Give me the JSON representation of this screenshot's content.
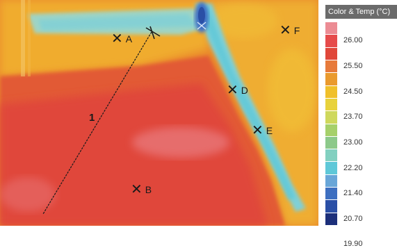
{
  "image": {
    "kind": "infrared thermal image",
    "colors": {
      "warm_red": "#e0473a",
      "orange": "#ea8a2c",
      "yellow_orange": "#f0b02c",
      "cool_cyan": "#7fd0d8",
      "cold_blue": "#3f6fc4"
    }
  },
  "markers": [
    {
      "label": "A"
    },
    {
      "label": "B"
    },
    {
      "label": "D"
    },
    {
      "label": "E"
    },
    {
      "label": "F"
    }
  ],
  "measure_line": {
    "label": "1"
  },
  "legend": {
    "title": "Color & Temp (°C)",
    "ticks": [
      "26.00",
      "25.50",
      "24.50",
      "23.70",
      "23.00",
      "22.20",
      "21.40",
      "20.70",
      "19.90"
    ],
    "swatches": [
      "#ec8c94",
      "#e64b4b",
      "#e0473a",
      "#e77a3a",
      "#ea9a2e",
      "#f0c02a",
      "#e8d23c",
      "#cfd85c",
      "#a6d06a",
      "#8cc98a",
      "#82d0c0",
      "#5ec8d8",
      "#68a6d8",
      "#3d6fc0",
      "#2a4fa6",
      "#1c2f7a"
    ]
  }
}
